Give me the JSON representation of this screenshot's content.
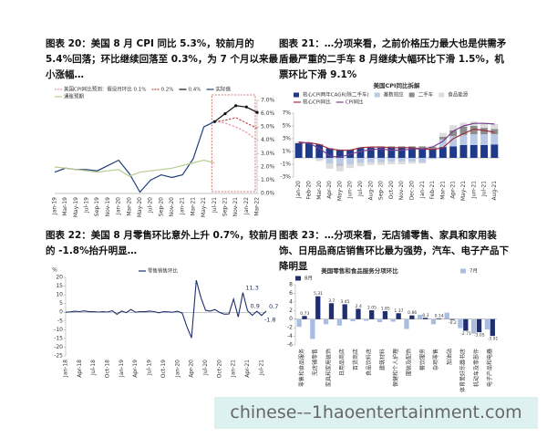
{
  "chart_data": [
    {
      "type": "line",
      "title": "图表 20：美国 8 月 CPI 同比 5.3%，较前月的 5.4%回落；环比继续回落至 0.3%，为 7 个月以来最小涨幅…",
      "categories": [
        "Jan-19",
        "Mar-19",
        "May-19",
        "Jul-19",
        "Sep-19",
        "Nov-19",
        "Jan-20",
        "Mar-20",
        "May-20",
        "Jul-20",
        "Sep-20",
        "Nov-20",
        "Jan-21",
        "Mar-21",
        "May-21",
        "Jul-21",
        "Sep-21",
        "Nov-21",
        "Jan-22",
        "Mar-22"
      ],
      "series": [
        {
          "name": "美国CPI同比预测：假设月环比 0.1%",
          "color": "#e59aa3",
          "dash": true,
          "values": [
            null,
            null,
            null,
            null,
            null,
            null,
            null,
            null,
            null,
            null,
            null,
            null,
            null,
            null,
            null,
            5.4,
            5.3,
            5.0,
            4.6,
            4.0
          ]
        },
        {
          "name": "0.2%",
          "color": "#c0504d",
          "dash": true,
          "values": [
            null,
            null,
            null,
            null,
            null,
            null,
            null,
            null,
            null,
            null,
            null,
            null,
            null,
            null,
            null,
            5.4,
            5.5,
            5.7,
            5.3,
            4.9
          ]
        },
        {
          "name": "0.4%",
          "color": "#111111",
          "marker": true,
          "values": [
            null,
            null,
            null,
            null,
            null,
            null,
            null,
            null,
            null,
            null,
            null,
            null,
            null,
            null,
            null,
            5.4,
            6.0,
            6.6,
            6.5,
            6.1
          ]
        },
        {
          "name": "实际值",
          "color": "#1f3f7a",
          "values": [
            1.6,
            1.9,
            1.8,
            1.8,
            1.7,
            2.1,
            2.5,
            1.5,
            0.1,
            1.0,
            1.4,
            1.2,
            1.4,
            2.6,
            5.0,
            5.4,
            null,
            null,
            null,
            null
          ]
        },
        {
          "name": "通胀预期",
          "color": "#b7cb8f",
          "values": [
            2.0,
            1.9,
            1.8,
            1.7,
            1.6,
            1.7,
            1.8,
            1.3,
            1.6,
            1.7,
            1.8,
            1.9,
            2.1,
            2.3,
            2.5,
            2.3,
            null,
            null,
            null,
            null
          ]
        }
      ],
      "ylim": [
        0,
        7
      ],
      "yticks": [
        {
          "value": 0,
          "label": "0.0%"
        },
        {
          "value": 1,
          "label": "1.0%"
        },
        {
          "value": 2,
          "label": "2.0%"
        },
        {
          "value": 3,
          "label": "3.0%"
        },
        {
          "value": 4,
          "label": "4.0%"
        },
        {
          "value": 5,
          "label": "5.0%"
        },
        {
          "value": 6,
          "label": "6.0%"
        },
        {
          "value": 7,
          "label": "7.0%"
        }
      ],
      "y_axis_side": "right"
    },
    {
      "type": "bar",
      "stacked": true,
      "title": "图表 21：…分项来看，之前价格压力最大也是供需矛盾最严重的二手车 8 月继续大幅环比下滑 1.5%，机票环比下滑 9.1%",
      "subtitle": "美国CPI同比拆解",
      "categories": [
        "Jan-20",
        "Feb-20",
        "Mar-20",
        "Apr-20",
        "May-20",
        "Jun-20",
        "Jul-20",
        "Aug-20",
        "Sep-20",
        "Oct-20",
        "Nov-20",
        "Dec-20",
        "Jan-21",
        "Feb-21",
        "Mar-21",
        "Apr-21",
        "May-21",
        "Jun-21",
        "Jul-21",
        "Aug-21"
      ],
      "series": [
        {
          "name": "核心CPI两年CAGR(除二手车)",
          "color": "#1f3a8a",
          "values": [
            2.3,
            2.3,
            2.1,
            1.5,
            1.3,
            1.3,
            1.5,
            1.6,
            1.6,
            1.6,
            1.6,
            1.6,
            1.5,
            1.4,
            1.7,
            1.8,
            2.0,
            2.0,
            2.0,
            2.1
          ]
        },
        {
          "name": "基数效应",
          "color": "#b9c9e6",
          "values": [
            0,
            0,
            -0.2,
            -0.9,
            -1.1,
            -1.0,
            -0.8,
            -0.7,
            -0.7,
            -0.6,
            -0.6,
            -0.6,
            -0.7,
            -0.2,
            1.2,
            1.6,
            1.6,
            1.7,
            1.7,
            1.6
          ]
        },
        {
          "name": "二手车",
          "color": "#8c8c8c",
          "values": [
            0,
            0,
            0,
            0,
            -0.1,
            0,
            0.1,
            0.1,
            0.2,
            0.2,
            0.2,
            0.2,
            0.3,
            0.3,
            0.4,
            0.9,
            1.3,
            1.3,
            1.0,
            0.8
          ]
        },
        {
          "name": "食品能源",
          "color": "#dcdcdc",
          "values": [
            0.2,
            0.1,
            -0.3,
            -0.8,
            -0.9,
            -0.6,
            -0.5,
            -0.4,
            -0.4,
            -0.4,
            -0.4,
            -0.3,
            -0.2,
            0.2,
            0.6,
            0.8,
            0.6,
            0.7,
            0.8,
            0.8
          ]
        },
        {
          "name": "核心CPI同比",
          "type": "line",
          "color": "#9b2f3a",
          "values": [
            2.3,
            2.4,
            2.1,
            1.4,
            1.2,
            1.2,
            1.6,
            1.7,
            1.7,
            1.6,
            1.6,
            1.6,
            1.4,
            1.3,
            1.6,
            3.0,
            3.8,
            4.5,
            4.3,
            4.0
          ]
        },
        {
          "name": "CPI同比",
          "type": "line",
          "color": "#7a3f8f",
          "values": [
            2.5,
            2.3,
            1.5,
            0.3,
            0.1,
            0.6,
            1.0,
            1.3,
            1.4,
            1.2,
            1.2,
            1.4,
            1.4,
            1.7,
            2.6,
            4.2,
            5.0,
            5.4,
            5.4,
            5.3
          ]
        }
      ],
      "ylim": [
        -3,
        7
      ],
      "yticks": [
        {
          "value": -3,
          "label": "-3%"
        },
        {
          "value": -1,
          "label": "-1%"
        },
        {
          "value": 1,
          "label": "1%"
        },
        {
          "value": 3,
          "label": "3%"
        },
        {
          "value": 5,
          "label": "5%"
        },
        {
          "value": 7,
          "label": "7%"
        }
      ],
      "y_axis_side": "left"
    },
    {
      "type": "line",
      "title": "图表 22：美国 8 月零售环比意外上升 0.7%，较前月的 -1.8%抬升明显…",
      "ylabel": "%",
      "categories": [
        "Jan-18",
        null,
        null,
        "Apr-18",
        null,
        null,
        "Jul-18",
        null,
        null,
        "Oct-18",
        null,
        null,
        "Jan-19",
        null,
        null,
        "Apr-19",
        null,
        null,
        "Jul-19",
        null,
        null,
        "Oct-19",
        null,
        null,
        "Jan-20",
        null,
        null,
        "Apr-20",
        null,
        null,
        "Jul-20",
        null,
        null,
        "Oct-20",
        null,
        null,
        "Jan-21",
        null,
        null,
        "Apr-21",
        null,
        null,
        "Jul-21",
        null
      ],
      "series": [
        {
          "name": "零售销售环比",
          "color": "#1f2f6e",
          "values": [
            0.0,
            0.2,
            0.6,
            0.4,
            0.8,
            0.3,
            0.4,
            0.1,
            0.3,
            0.1,
            0.9,
            -1.2,
            0.7,
            -0.2,
            1.6,
            0.0,
            0.4,
            0.3,
            0.7,
            0.4,
            -0.3,
            0.3,
            0.2,
            0.0,
            0.6,
            -0.5,
            -8.2,
            -14.7,
            18.3,
            8.4,
            1.1,
            0.7,
            1.6,
            -0.1,
            -1.1,
            -1.0,
            7.6,
            -2.7,
            11.3,
            0.9,
            -1.7,
            0.6,
            -1.8,
            0.7
          ],
          "value_labels": [
            null,
            null,
            null,
            null,
            null,
            null,
            null,
            null,
            null,
            null,
            null,
            null,
            null,
            null,
            null,
            null,
            null,
            null,
            null,
            null,
            null,
            null,
            null,
            null,
            null,
            null,
            null,
            null,
            null,
            null,
            null,
            null,
            null,
            null,
            null,
            null,
            null,
            null,
            "11.3",
            "0.9",
            null,
            null,
            "-1.8",
            "0.7"
          ]
        }
      ],
      "ylim": [
        -25,
        20
      ],
      "yticks": [
        -25,
        -20,
        -15,
        -10,
        -5,
        0,
        5,
        10,
        15,
        20
      ],
      "y_axis_side": "left"
    },
    {
      "type": "bar",
      "title": "图表 23：…分项来看，无店铺零售、家具和家用装饰、日用品商店销售环比最为强势，汽车、电子产品下降明显",
      "subtitle": "美国零售和食品服务分项环比",
      "categories": [
        "零售和食品服务",
        "无店铺零售",
        "家具和家用装饰",
        "日用品商店",
        "百货商店",
        "食品饮料店",
        "建筑材料",
        "保健和个人护理",
        "服装及配饰",
        "餐饮服务",
        "杂项零售",
        "加油站",
        "体育爱好乐器书店",
        "机动车及零部件",
        "电子产品和电器"
      ],
      "series": [
        {
          "name": "7月",
          "color": "#a9bde0",
          "values": [
            -1.8,
            -4.6,
            -1.2,
            -1.5,
            -0.5,
            -0.4,
            -0.7,
            -0.6,
            -2.3,
            1.0,
            -1.2,
            1.5,
            -2.1,
            -3.4,
            -2.4
          ]
        },
        {
          "name": "8月",
          "color": "#1f2f6e",
          "labels": true,
          "values": [
            0.73,
            5.31,
            3.7,
            3.45,
            2.4,
            2.05,
            1.85,
            1.37,
            0.86,
            0.3,
            0.14,
            -0.2,
            -2.71,
            -3.05,
            -3.91
          ]
        }
      ],
      "ylim": [
        -6,
        8
      ],
      "yticks": [
        -6,
        -4,
        -2,
        0,
        2,
        4,
        6,
        8
      ],
      "y_axis_side": "left"
    }
  ],
  "watermark": "chinese-–1haoentertainment.com"
}
